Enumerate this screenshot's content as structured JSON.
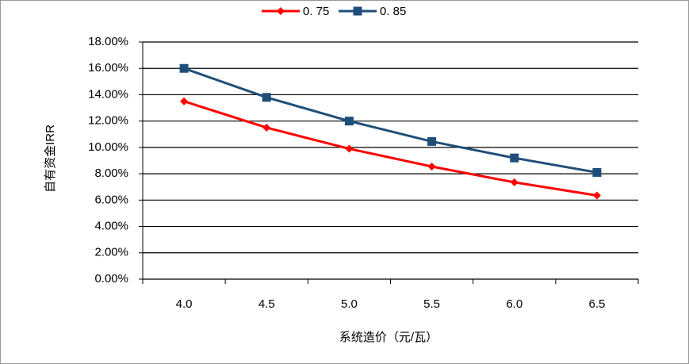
{
  "chart_data": {
    "type": "line",
    "x_label": "系统造价（元/瓦）",
    "y_label": "自有资金IRR",
    "categories": [
      "4.0",
      "4.5",
      "5.0",
      "5.5",
      "6.0",
      "6.5"
    ],
    "series": [
      {
        "name": "0. 75",
        "color": "#ff0000",
        "marker": "diamond",
        "values": [
          13.5,
          11.5,
          9.9,
          8.55,
          7.35,
          6.35
        ]
      },
      {
        "name": "0. 85",
        "color": "#1f4e79",
        "marker": "square",
        "values": [
          16.0,
          13.8,
          12.0,
          10.45,
          9.2,
          8.1
        ]
      }
    ],
    "ylim": [
      0,
      18
    ],
    "yticks": [
      {
        "value": 0,
        "label": "0.00%"
      },
      {
        "value": 2,
        "label": "2.00%"
      },
      {
        "value": 4,
        "label": "4.00%"
      },
      {
        "value": 6,
        "label": "6.00%"
      },
      {
        "value": 8,
        "label": "8.00%"
      },
      {
        "value": 10,
        "label": "10.00%"
      },
      {
        "value": 12,
        "label": "12.00%"
      },
      {
        "value": 14,
        "label": "14.00%"
      },
      {
        "value": 16,
        "label": "16.00%"
      },
      {
        "value": 18,
        "label": "18.00%"
      }
    ],
    "grid": true,
    "legend": "top"
  }
}
